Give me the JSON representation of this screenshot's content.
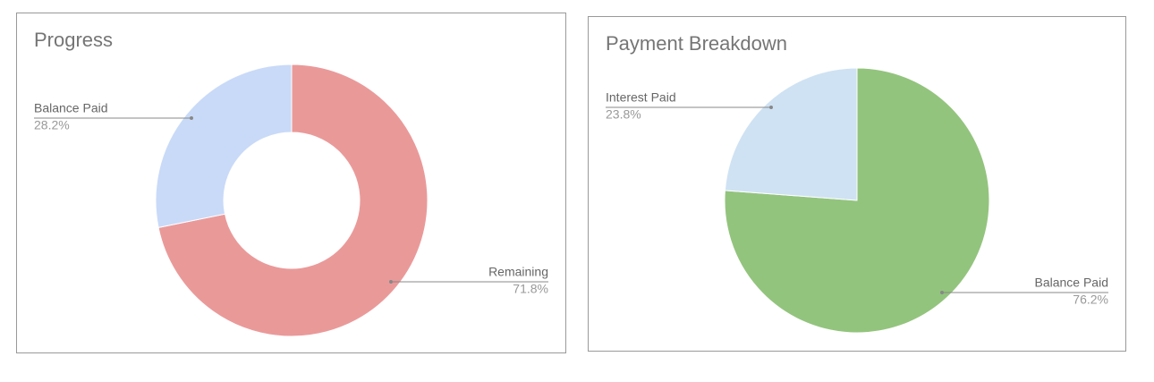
{
  "chart_data": [
    {
      "type": "donut",
      "title": "Progress",
      "categories": [
        "Remaining",
        "Balance Paid"
      ],
      "values": [
        71.8,
        28.2
      ],
      "value_labels": [
        "71.8%",
        "28.2%"
      ],
      "colors": [
        "#ea9999",
        "#c9daf8"
      ]
    },
    {
      "type": "pie",
      "title": "Payment Breakdown",
      "categories": [
        "Balance Paid",
        "Interest Paid"
      ],
      "values": [
        76.2,
        23.8
      ],
      "value_labels": [
        "76.2%",
        "23.8%"
      ],
      "colors": [
        "#93c47d",
        "#cfe2f3"
      ]
    }
  ]
}
